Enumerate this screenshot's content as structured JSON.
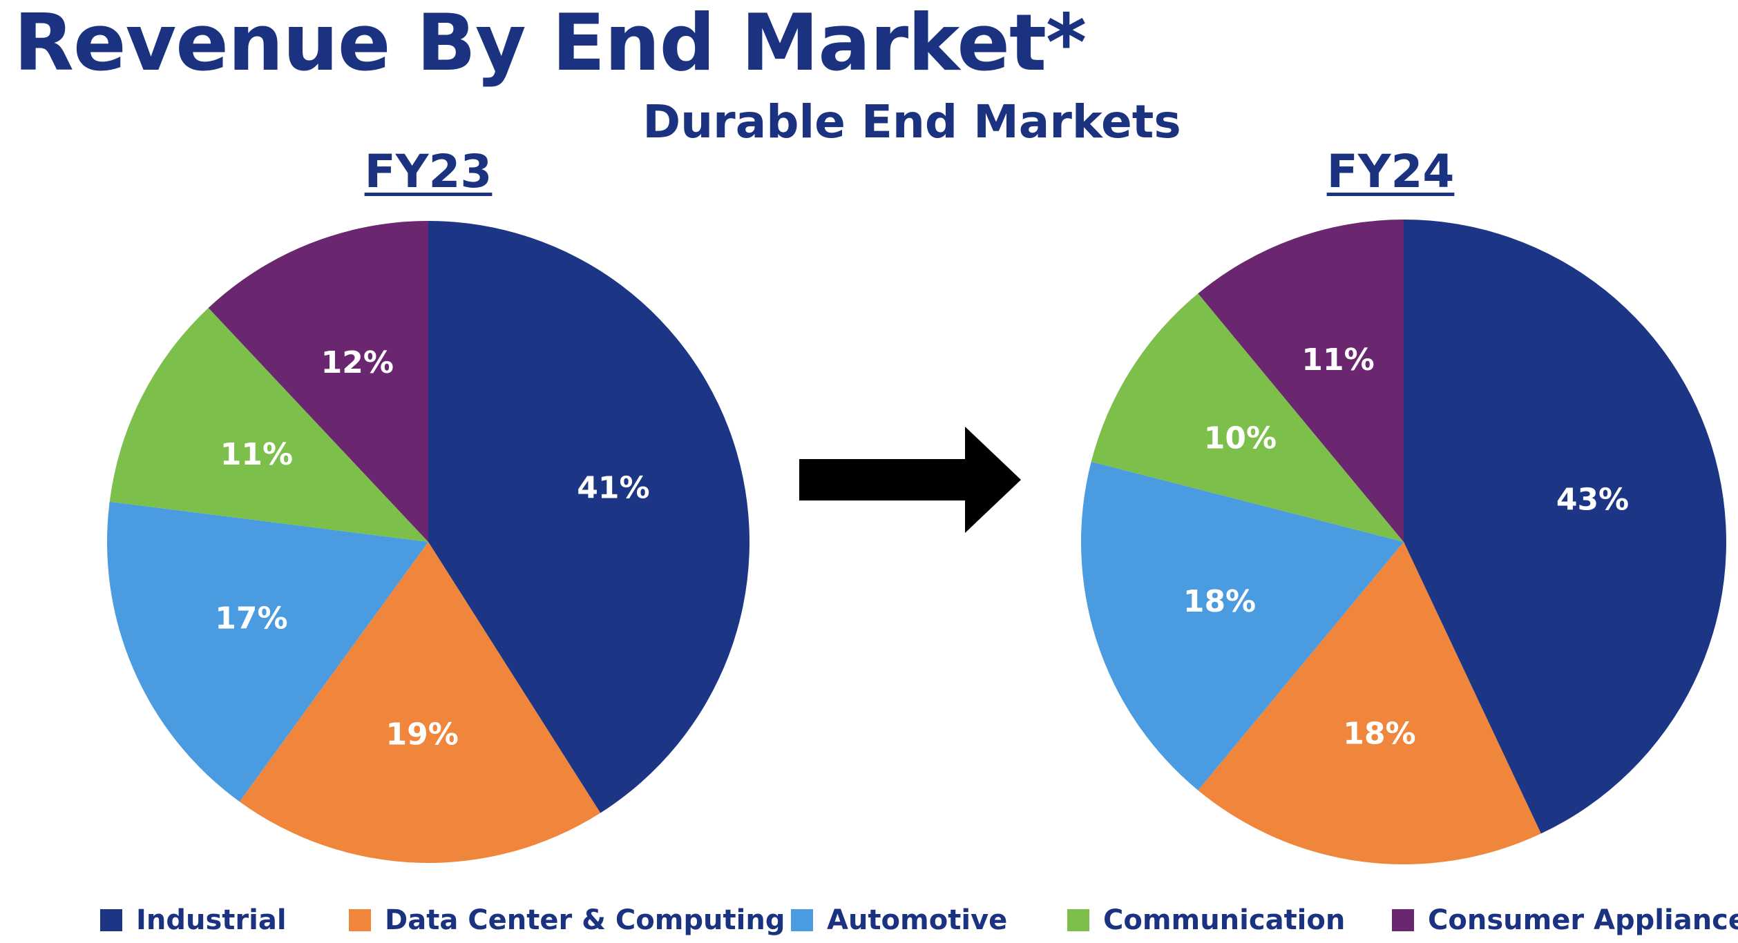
{
  "title": "Revenue By End Market*",
  "subtitle": "Durable End Markets",
  "colors": {
    "title": "#1b3280",
    "Industrial": "#1d3585",
    "Data Center & Computing": "#ef863b",
    "Automotive": "#4a9bdf",
    "Communication": "#7cbf4b",
    "Consumer Appliance": "#6b2670",
    "arrow": "#000000",
    "slice_label": "#ffffff"
  },
  "chart_data": [
    {
      "type": "pie",
      "title": "FY23",
      "start_angle_deg": 0,
      "direction": "clockwise",
      "slices": [
        {
          "label": "Industrial",
          "value": 41,
          "text": "41%"
        },
        {
          "label": "Data Center & Computing",
          "value": 19,
          "text": "19%"
        },
        {
          "label": "Automotive",
          "value": 17,
          "text": "17%"
        },
        {
          "label": "Communication",
          "value": 11,
          "text": "11%"
        },
        {
          "label": "Consumer Appliance",
          "value": 12,
          "text": "12%"
        }
      ]
    },
    {
      "type": "pie",
      "title": "FY24",
      "start_angle_deg": 0,
      "direction": "clockwise",
      "slices": [
        {
          "label": "Industrial",
          "value": 43,
          "text": "43%"
        },
        {
          "label": "Data Center & Computing",
          "value": 18,
          "text": "18%"
        },
        {
          "label": "Automotive",
          "value": 18,
          "text": "18%"
        },
        {
          "label": "Communication",
          "value": 10,
          "text": "10%"
        },
        {
          "label": "Consumer Appliance",
          "value": 11,
          "text": "11%"
        }
      ]
    }
  ],
  "legend": {
    "placement": "bottom",
    "items": [
      {
        "label": "Industrial"
      },
      {
        "label": "Data Center & Computing"
      },
      {
        "label": "Automotive"
      },
      {
        "label": "Communication"
      },
      {
        "label": "Consumer Appliance"
      }
    ]
  }
}
